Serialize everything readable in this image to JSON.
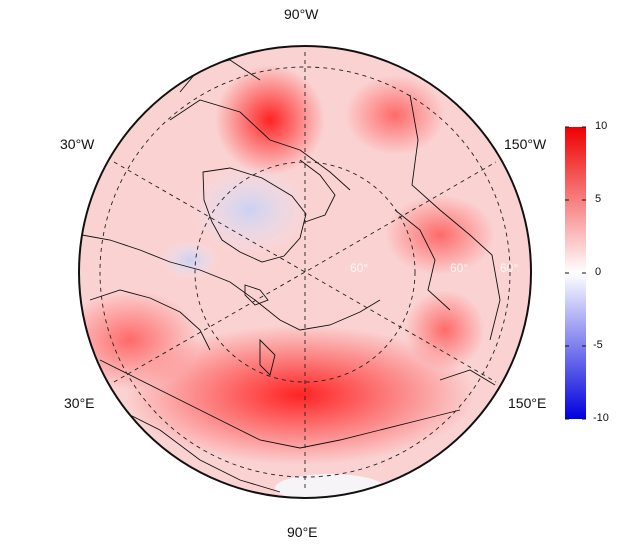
{
  "map": {
    "projection": "north-polar-stereographic",
    "colormap": [
      "#0000dd",
      "#ffffff",
      "#ee0000"
    ],
    "longitude_labels": [
      "90°W",
      "30°W",
      "150°W",
      "30°E",
      "150°E",
      "90°E"
    ],
    "latitude_labels": [
      "60°",
      "60°",
      "60°"
    ]
  },
  "colorbar": {
    "range": [
      -10,
      10
    ],
    "tick_labels": [
      "10",
      "5",
      "0",
      "-5",
      "-10"
    ]
  }
}
